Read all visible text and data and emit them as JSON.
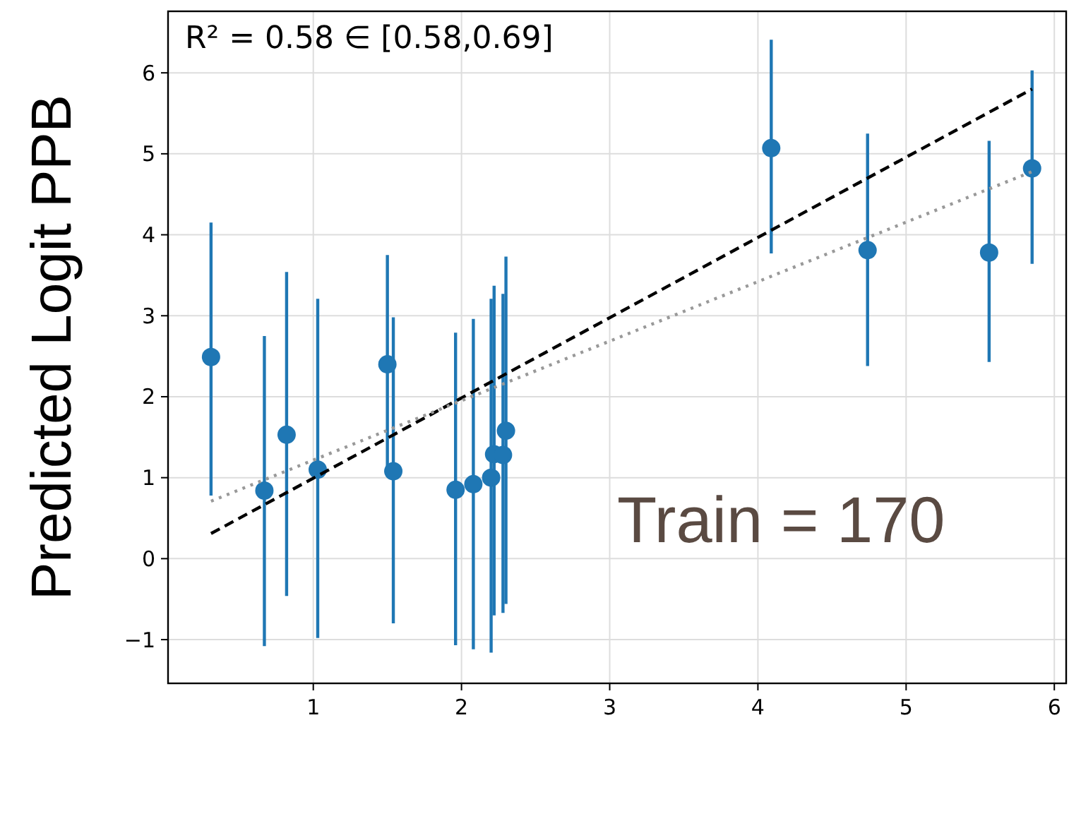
{
  "chart_data": {
    "type": "scatter",
    "ylabel": "Predicted Logit PPB",
    "annotations": [
      "R² = 0.58 ∈ [0.58,0.69]",
      "Train = 170"
    ],
    "xlim": [
      0.02,
      6.08
    ],
    "ylim": [
      -1.54,
      6.76
    ],
    "xticks": [
      1,
      2,
      3,
      4,
      5,
      6
    ],
    "yticks": [
      {
        "value": -1,
        "label": "−1"
      },
      0,
      1,
      2,
      3,
      4,
      5,
      6
    ],
    "grid": true,
    "series": [
      {
        "color": "#1f77b4",
        "marker": "circle",
        "x": [
          0.31,
          0.67,
          0.82,
          1.03,
          1.5,
          1.54,
          1.96,
          2.08,
          2.2,
          2.22,
          2.28,
          2.3,
          4.09,
          4.74,
          5.56,
          5.85
        ],
        "values": [
          2.49,
          0.84,
          1.53,
          1.1,
          2.4,
          1.08,
          0.85,
          0.92,
          1.0,
          1.29,
          1.28,
          1.58,
          5.07,
          3.81,
          3.78,
          4.82
        ],
        "errors": [
          [
            0.78,
            4.15
          ],
          [
            -1.08,
            2.75
          ],
          [
            -0.46,
            3.54
          ],
          [
            -0.98,
            3.21
          ],
          [
            1.05,
            3.75
          ],
          [
            -0.8,
            2.98
          ],
          [
            -1.07,
            2.79
          ],
          [
            -1.12,
            2.96
          ],
          [
            -1.16,
            3.21
          ],
          [
            -0.7,
            3.37
          ],
          [
            -0.67,
            3.27
          ],
          [
            -0.56,
            3.73
          ],
          [
            3.77,
            6.41
          ],
          [
            2.38,
            5.25
          ],
          [
            2.43,
            5.16
          ],
          [
            3.64,
            6.03
          ]
        ]
      },
      {
        "type": "line",
        "color": "#000000",
        "line_style": "dashed",
        "marker": "none",
        "x": [
          0.31,
          5.85
        ],
        "values": [
          0.31,
          5.8
        ]
      },
      {
        "type": "line",
        "color": "#999999",
        "line_style": "dotted",
        "marker": "none",
        "x": [
          0.31,
          5.85
        ],
        "values": [
          0.71,
          4.78
        ]
      }
    ]
  }
}
